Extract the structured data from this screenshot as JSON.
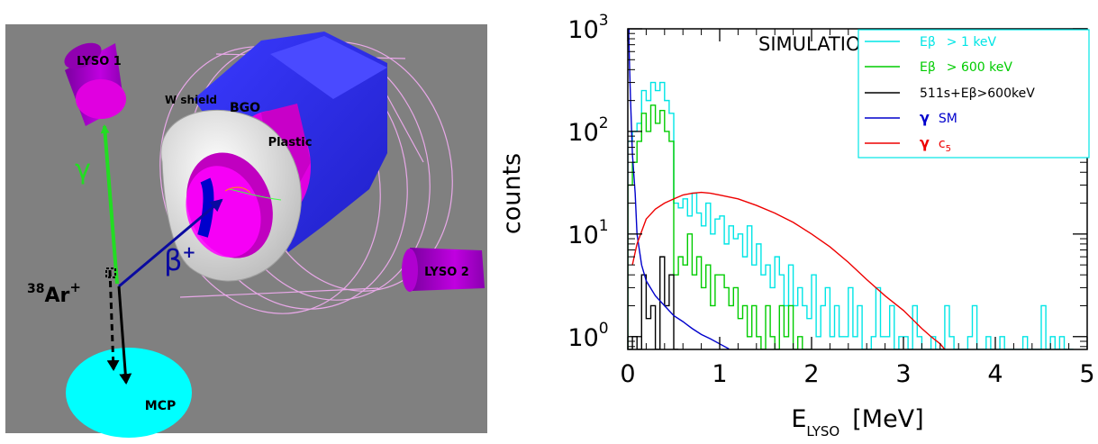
{
  "detector": {
    "labels": {
      "lyso1": "LYSO 1",
      "lyso2": "LYSO 2",
      "w_shield": "W shield",
      "bgo": "BGO",
      "plastic": "Plastic",
      "mcp": "MCP",
      "gamma": "γ",
      "beta_base": "β",
      "beta_sup": "+",
      "ion_mass": "38",
      "ion_symbol": "Ar",
      "ion_charge": "+"
    },
    "colors": {
      "background": "#808080",
      "lyso": "#c000e0",
      "bgo": "#3333ff",
      "plastic": "#e000e0",
      "shield": "#e0e0e0",
      "mcp": "#00ffff",
      "gamma_arrow": "#22dd22",
      "beta_arrow": "#0a0aa0",
      "ion_arrow": "#000000",
      "wire": "#e8a8e8"
    }
  },
  "chart_data": {
    "type": "line",
    "scale": "log",
    "annotation": "SIMULATION",
    "ylabel": "counts",
    "xlabel_base": "E",
    "xlabel_sub": "LYSO",
    "xlabel_unit": "[MeV]",
    "xlim": [
      0,
      5
    ],
    "ylim": [
      0.75,
      1000
    ],
    "x_ticks": [
      "0",
      "1",
      "2",
      "3",
      "4",
      "5"
    ],
    "y_ticks": [
      {
        "base": "10",
        "exp": "0",
        "value": 1
      },
      {
        "base": "10",
        "exp": "1",
        "value": 10
      },
      {
        "base": "10",
        "exp": "2",
        "value": 100
      },
      {
        "base": "10",
        "exp": "3",
        "value": 1000
      }
    ],
    "legend_position": "top-right",
    "series": [
      {
        "key": "cyan",
        "name": "Eβ > 1 keV",
        "color": "#00e5e5",
        "step": true,
        "x": [
          0.0,
          0.05,
          0.1,
          0.15,
          0.2,
          0.25,
          0.3,
          0.35,
          0.4,
          0.45,
          0.5,
          0.55,
          0.6,
          0.65,
          0.7,
          0.75,
          0.8,
          0.85,
          0.9,
          0.95,
          1.0,
          1.05,
          1.1,
          1.15,
          1.2,
          1.25,
          1.3,
          1.35,
          1.4,
          1.45,
          1.5,
          1.55,
          1.6,
          1.65,
          1.7,
          1.75,
          1.8,
          1.85,
          1.9,
          1.95,
          2.0,
          2.05,
          2.1,
          2.15,
          2.2,
          2.25,
          2.3,
          2.35,
          2.4,
          2.45,
          2.5,
          2.55,
          2.6,
          2.65,
          2.7,
          2.75,
          2.8,
          2.85,
          2.9,
          2.95,
          3.0,
          3.05,
          3.1,
          3.15,
          3.2,
          3.25,
          3.3,
          3.35,
          3.4,
          3.45,
          3.5,
          3.55,
          3.6,
          3.65,
          3.7,
          3.75,
          3.8,
          3.85,
          3.9,
          3.95,
          4.0,
          4.05,
          4.1,
          4.15,
          4.2,
          4.25,
          4.3,
          4.35,
          4.4,
          4.45,
          4.5,
          4.55,
          4.6,
          4.65,
          4.7,
          4.75,
          4.8
        ],
        "y": [
          80,
          100,
          120,
          250,
          200,
          300,
          250,
          300,
          200,
          150,
          20,
          18,
          22,
          15,
          25,
          16,
          12,
          20,
          10,
          14,
          15,
          8,
          12,
          9,
          10,
          6,
          12,
          5,
          8,
          4,
          5,
          3,
          6,
          4,
          2,
          5,
          2,
          3,
          2,
          1.5,
          4,
          1,
          2,
          3,
          1,
          2,
          1,
          1,
          3,
          1,
          2,
          0.75,
          0.75,
          1,
          3,
          1,
          1,
          2,
          0.75,
          1,
          1,
          0.75,
          2,
          1,
          0.75,
          0.75,
          1,
          0.75,
          0.75,
          2,
          1,
          0.75,
          0.75,
          0.75,
          1,
          2,
          0.75,
          0.75,
          1,
          0.75,
          0.75,
          1,
          0.75,
          0.75,
          0.75,
          0.75,
          1,
          0.75,
          0.75,
          0.75,
          2,
          0.75,
          1,
          0.75,
          1,
          0.75,
          0.75
        ]
      },
      {
        "key": "green",
        "name": "Eβ > 600 keV",
        "color": "#00cc00",
        "step": true,
        "x": [
          0.0,
          0.05,
          0.1,
          0.15,
          0.2,
          0.25,
          0.3,
          0.35,
          0.4,
          0.45,
          0.5,
          0.55,
          0.6,
          0.65,
          0.7,
          0.75,
          0.8,
          0.85,
          0.9,
          0.95,
          1.0,
          1.05,
          1.1,
          1.15,
          1.2,
          1.25,
          1.3,
          1.35,
          1.4,
          1.45,
          1.5,
          1.55,
          1.6,
          1.65,
          1.7,
          1.75,
          1.8,
          1.85,
          1.9,
          1.95
        ],
        "y": [
          30,
          50,
          80,
          150,
          100,
          180,
          120,
          160,
          100,
          80,
          4,
          6,
          5,
          10,
          4,
          6,
          3,
          5,
          2,
          4,
          4,
          3,
          2,
          3,
          1.5,
          2,
          1,
          2,
          1,
          0.75,
          2,
          1,
          0.75,
          2,
          1,
          2,
          0.75,
          1,
          0.75,
          0.75
        ]
      },
      {
        "key": "black",
        "name": "511s+Eβ>600keV",
        "color": "#000000",
        "step": true,
        "x": [
          0.0,
          0.05,
          0.1,
          0.15,
          0.2,
          0.25,
          0.3,
          0.35,
          0.4,
          0.45,
          0.5
        ],
        "y": [
          0.75,
          1,
          0.75,
          4,
          1.5,
          2,
          0.75,
          6,
          2,
          4,
          0.75
        ]
      },
      {
        "key": "blue",
        "name": "γ SM",
        "color": "#0000cc",
        "step": false,
        "x": [
          0.01,
          0.02,
          0.03,
          0.05,
          0.08,
          0.1,
          0.15,
          0.2,
          0.3,
          0.4,
          0.5,
          0.6,
          0.7,
          0.8,
          0.9,
          1.0,
          1.1
        ],
        "y": [
          900,
          400,
          200,
          60,
          25,
          10,
          5,
          3.5,
          2.5,
          2,
          1.6,
          1.4,
          1.2,
          1.05,
          0.95,
          0.85,
          0.76
        ]
      },
      {
        "key": "red",
        "name": "γ c5",
        "color": "#ee0000",
        "step": false,
        "x": [
          0.05,
          0.1,
          0.2,
          0.3,
          0.4,
          0.5,
          0.6,
          0.7,
          0.8,
          0.9,
          1.0,
          1.2,
          1.4,
          1.6,
          1.8,
          2.0,
          2.2,
          2.4,
          2.6,
          2.8,
          3.0,
          3.2,
          3.3,
          3.4,
          3.45
        ],
        "y": [
          5,
          8,
          14,
          17.5,
          20,
          22,
          24,
          25,
          25.5,
          25,
          24,
          22,
          19,
          16,
          13,
          10,
          7.5,
          5.3,
          3.6,
          2.5,
          1.8,
          1.2,
          1.0,
          0.85,
          0.75
        ]
      }
    ],
    "legend_labels": {
      "cyan": {
        "symbol": "Eβ",
        "text": "> 1 keV"
      },
      "green": {
        "symbol": "Eβ",
        "text": "> 600 keV"
      },
      "black": {
        "text": "511s+Eβ>600keV"
      },
      "blue": {
        "symbol": "γ",
        "text": "SM"
      },
      "red": {
        "symbol": "γ",
        "text": "c",
        "sub": "5"
      }
    }
  }
}
